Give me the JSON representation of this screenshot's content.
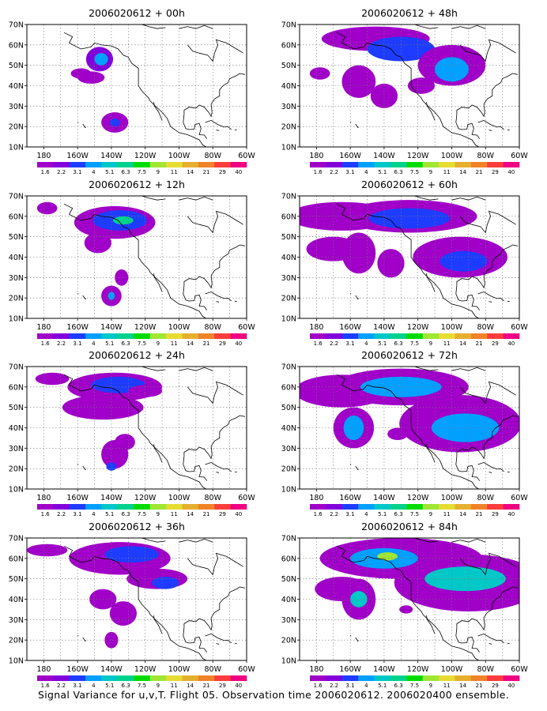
{
  "caption": "Signal Variance for u,v,T. Flight 05. Observation time 2006020612. 2006020400 ensemble.",
  "lat_labels": [
    "70N",
    "60N",
    "50N",
    "40N",
    "30N",
    "20N",
    "10N"
  ],
  "lon_labels": [
    "180",
    "160W",
    "140W",
    "120W",
    "100W",
    "80W",
    "60W"
  ],
  "colorbar": {
    "labels": [
      "1.6",
      "2.2",
      "3.1",
      "4",
      "5.1",
      "6.3",
      "7.5",
      "9",
      "11",
      "14",
      "21",
      "29",
      "40"
    ],
    "colors": [
      "#a000c8",
      "#8200dc",
      "#1e3cff",
      "#00a0ff",
      "#00c8c8",
      "#00d28c",
      "#00dc00",
      "#a0e632",
      "#e6dc32",
      "#e6af2d",
      "#f08228",
      "#fa3c3c",
      "#f00082"
    ]
  },
  "panels": [
    {
      "title": "2006020612 + 00h",
      "blobs": [
        {
          "lon": -147,
          "lat": 53,
          "rx": 4,
          "ry": 6,
          "level": 1
        },
        {
          "lon": -146,
          "lat": 53,
          "rx": 2,
          "ry": 3,
          "level": 3
        },
        {
          "lon": -158,
          "lat": 46,
          "rx": 3,
          "ry": 2.5,
          "level": 0
        },
        {
          "lon": -152,
          "lat": 44,
          "rx": 4,
          "ry": 3,
          "level": 0
        },
        {
          "lon": -138,
          "lat": 22,
          "rx": 4,
          "ry": 5,
          "level": 0
        },
        {
          "lon": -138,
          "lat": 22,
          "rx": 1.5,
          "ry": 2,
          "level": 2
        }
      ]
    },
    {
      "title": "2006020612 + 12h",
      "blobs": [
        {
          "lon": -148,
          "lat": 47,
          "rx": 4,
          "ry": 5,
          "level": 0
        },
        {
          "lon": -138,
          "lat": 57,
          "rx": 12,
          "ry": 8,
          "level": 0
        },
        {
          "lon": -135,
          "lat": 58,
          "rx": 8,
          "ry": 5,
          "level": 2
        },
        {
          "lon": -133,
          "lat": 58,
          "rx": 3,
          "ry": 2,
          "level": 5
        },
        {
          "lon": -178,
          "lat": 64,
          "rx": 3,
          "ry": 3,
          "level": 0
        },
        {
          "lon": -140,
          "lat": 21,
          "rx": 3,
          "ry": 5,
          "level": 0
        },
        {
          "lon": -134,
          "lat": 30,
          "rx": 2,
          "ry": 4,
          "level": 0
        },
        {
          "lon": -140,
          "lat": 21,
          "rx": 1,
          "ry": 2,
          "level": 3
        }
      ]
    },
    {
      "title": "2006020612 + 24h",
      "blobs": [
        {
          "lon": -175,
          "lat": 64,
          "rx": 5,
          "ry": 3,
          "level": 0
        },
        {
          "lon": -145,
          "lat": 50,
          "rx": 12,
          "ry": 6,
          "level": 0
        },
        {
          "lon": -138,
          "lat": 60,
          "rx": 14,
          "ry": 7,
          "level": 0
        },
        {
          "lon": -136,
          "lat": 61,
          "rx": 8,
          "ry": 4,
          "level": 2
        },
        {
          "lon": -120,
          "lat": 58,
          "rx": 5,
          "ry": 3,
          "level": 0
        },
        {
          "lon": -138,
          "lat": 27,
          "rx": 4,
          "ry": 7,
          "level": 0
        },
        {
          "lon": -132,
          "lat": 33,
          "rx": 3,
          "ry": 4,
          "level": 0
        },
        {
          "lon": -140,
          "lat": 21,
          "rx": 1.5,
          "ry": 2,
          "level": 2
        }
      ]
    },
    {
      "title": "2006020612 + 36h",
      "blobs": [
        {
          "lon": -178,
          "lat": 64,
          "rx": 6,
          "ry": 3,
          "level": 0
        },
        {
          "lon": -135,
          "lat": 60,
          "rx": 15,
          "ry": 8,
          "level": 0
        },
        {
          "lon": -128,
          "lat": 62,
          "rx": 8,
          "ry": 4,
          "level": 2
        },
        {
          "lon": -145,
          "lat": 40,
          "rx": 4,
          "ry": 5,
          "level": 0
        },
        {
          "lon": -113,
          "lat": 50,
          "rx": 9,
          "ry": 5,
          "level": 0
        },
        {
          "lon": -108,
          "lat": 48,
          "rx": 4,
          "ry": 3,
          "level": 2
        },
        {
          "lon": -133,
          "lat": 33,
          "rx": 4,
          "ry": 6,
          "level": 0
        },
        {
          "lon": -140,
          "lat": 20,
          "rx": 2,
          "ry": 4,
          "level": 0
        }
      ]
    },
    {
      "title": "2006020612 + 48h",
      "blobs": [
        {
          "lon": -145,
          "lat": 63,
          "rx": 16,
          "ry": 6,
          "level": 0
        },
        {
          "lon": -130,
          "lat": 58,
          "rx": 10,
          "ry": 6,
          "level": 2
        },
        {
          "lon": -100,
          "lat": 50,
          "rx": 10,
          "ry": 10,
          "level": 0
        },
        {
          "lon": -100,
          "lat": 48,
          "rx": 5,
          "ry": 6,
          "level": 3
        },
        {
          "lon": -178,
          "lat": 46,
          "rx": 3,
          "ry": 3,
          "level": 0
        },
        {
          "lon": -155,
          "lat": 42,
          "rx": 5,
          "ry": 8,
          "level": 0
        },
        {
          "lon": -140,
          "lat": 35,
          "rx": 4,
          "ry": 6,
          "level": 0
        },
        {
          "lon": -118,
          "lat": 40,
          "rx": 4,
          "ry": 4,
          "level": 0
        }
      ]
    },
    {
      "title": "2006020612 + 60h",
      "blobs": [
        {
          "lon": -165,
          "lat": 60,
          "rx": 16,
          "ry": 7,
          "level": 0
        },
        {
          "lon": -125,
          "lat": 60,
          "rx": 20,
          "ry": 8,
          "level": 0
        },
        {
          "lon": -125,
          "lat": 59,
          "rx": 12,
          "ry": 5,
          "level": 2
        },
        {
          "lon": -170,
          "lat": 44,
          "rx": 8,
          "ry": 6,
          "level": 0
        },
        {
          "lon": -155,
          "lat": 42,
          "rx": 5,
          "ry": 10,
          "level": 0
        },
        {
          "lon": -136,
          "lat": 37,
          "rx": 4,
          "ry": 7,
          "level": 0
        },
        {
          "lon": -95,
          "lat": 40,
          "rx": 14,
          "ry": 10,
          "level": 0
        },
        {
          "lon": -93,
          "lat": 38,
          "rx": 7,
          "ry": 5,
          "level": 2
        }
      ]
    },
    {
      "title": "2006020612 + 72h",
      "blobs": [
        {
          "lon": -165,
          "lat": 58,
          "rx": 14,
          "ry": 8,
          "level": 0
        },
        {
          "lon": -130,
          "lat": 60,
          "rx": 20,
          "ry": 9,
          "level": 0
        },
        {
          "lon": -130,
          "lat": 60,
          "rx": 12,
          "ry": 5,
          "level": 3
        },
        {
          "lon": -158,
          "lat": 40,
          "rx": 6,
          "ry": 10,
          "level": 0
        },
        {
          "lon": -158,
          "lat": 40,
          "rx": 3,
          "ry": 6,
          "level": 3
        },
        {
          "lon": -95,
          "lat": 42,
          "rx": 18,
          "ry": 14,
          "level": 0
        },
        {
          "lon": -92,
          "lat": 40,
          "rx": 10,
          "ry": 7,
          "level": 3
        },
        {
          "lon": -132,
          "lat": 37,
          "rx": 3,
          "ry": 3,
          "level": 0
        }
      ]
    },
    {
      "title": "2006020612 + 84h",
      "blobs": [
        {
          "lon": -130,
          "lat": 60,
          "rx": 24,
          "ry": 10,
          "level": 0
        },
        {
          "lon": -140,
          "lat": 60,
          "rx": 10,
          "ry": 5,
          "level": 3
        },
        {
          "lon": -138,
          "lat": 61,
          "rx": 3,
          "ry": 2,
          "level": 7
        },
        {
          "lon": -165,
          "lat": 45,
          "rx": 8,
          "ry": 6,
          "level": 0
        },
        {
          "lon": -155,
          "lat": 40,
          "rx": 5,
          "ry": 10,
          "level": 0
        },
        {
          "lon": -155,
          "lat": 40,
          "rx": 2.5,
          "ry": 4,
          "level": 4
        },
        {
          "lon": -90,
          "lat": 48,
          "rx": 22,
          "ry": 14,
          "level": 0
        },
        {
          "lon": -92,
          "lat": 50,
          "rx": 12,
          "ry": 6,
          "level": 4
        },
        {
          "lon": -127,
          "lat": 35,
          "rx": 2,
          "ry": 2,
          "level": 0
        }
      ]
    }
  ]
}
